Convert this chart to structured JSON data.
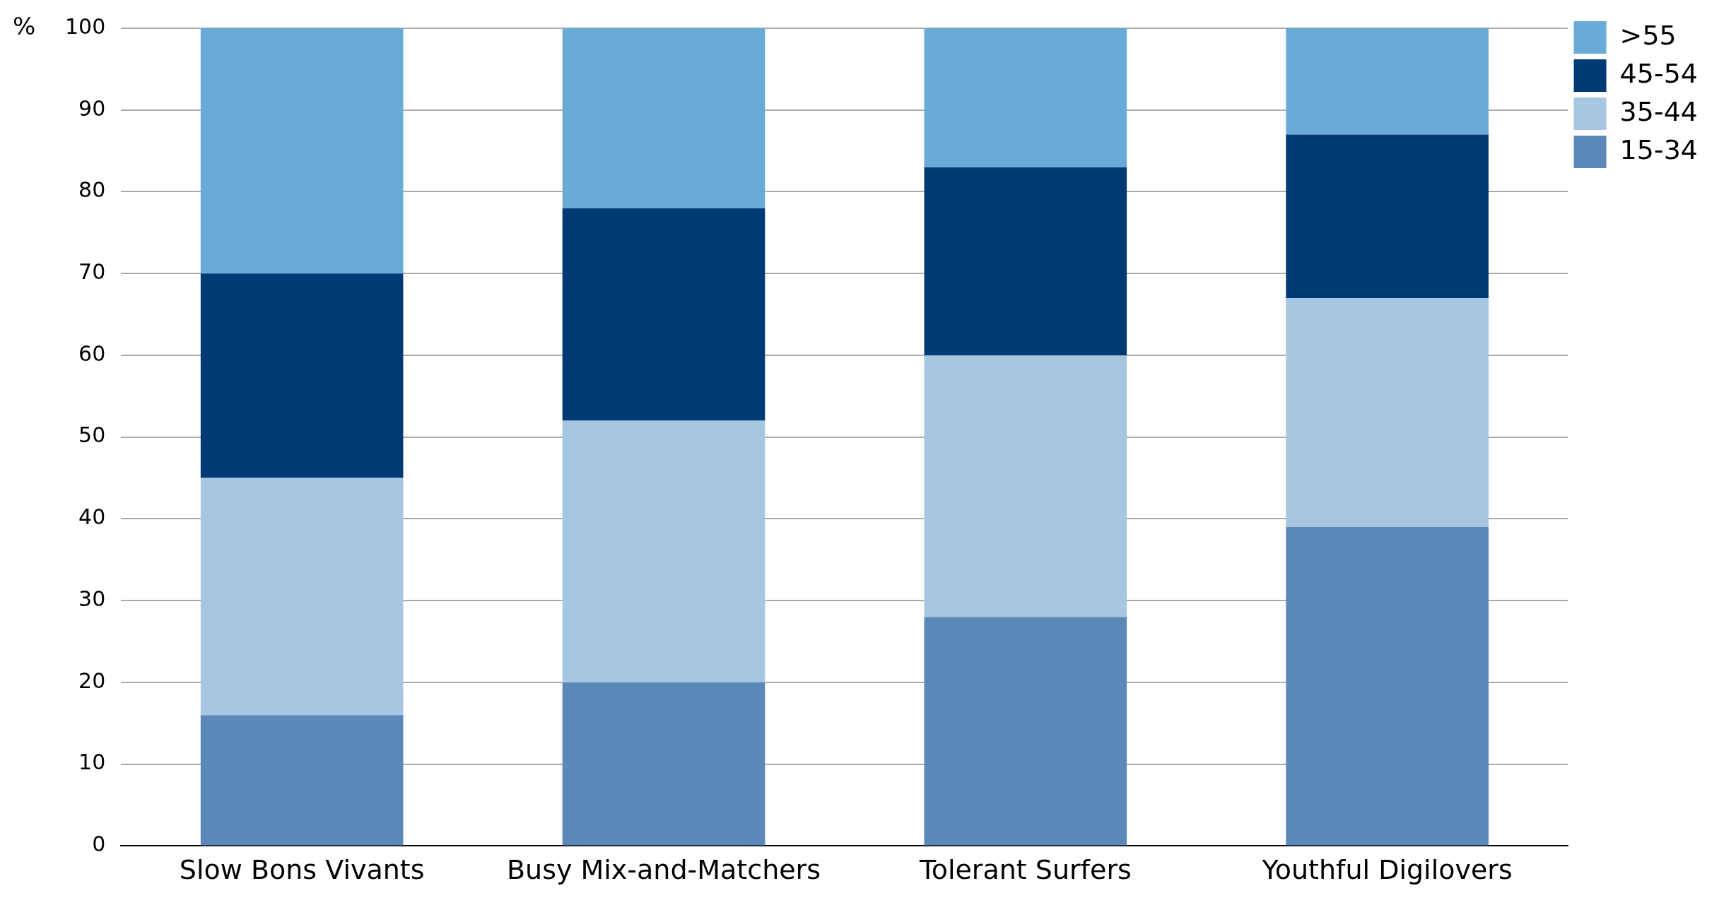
{
  "chart_data": {
    "type": "bar",
    "stacked": true,
    "ylabel": "%",
    "categories": [
      "Slow Bons Vivants",
      "Busy Mix-and-Matchers",
      "Tolerant Surfers",
      "Youthful Digilovers"
    ],
    "series": [
      {
        "name": "15-34",
        "color": "#5b88b8",
        "values": [
          16,
          20,
          28,
          39
        ]
      },
      {
        "name": "35-44",
        "color": "#a6c6e1",
        "values": [
          29,
          32,
          32,
          28
        ]
      },
      {
        "name": "45-54",
        "color": "#003a75",
        "values": [
          25,
          26,
          23,
          20
        ]
      },
      {
        "name": ">55",
        "color": "#6aaad9",
        "values": [
          30,
          22,
          17,
          13
        ]
      }
    ],
    "ylim": [
      0,
      100
    ],
    "yticks": [
      0,
      10,
      20,
      30,
      40,
      50,
      60,
      70,
      80,
      90,
      100
    ],
    "grid": "y",
    "legend": "top right"
  }
}
